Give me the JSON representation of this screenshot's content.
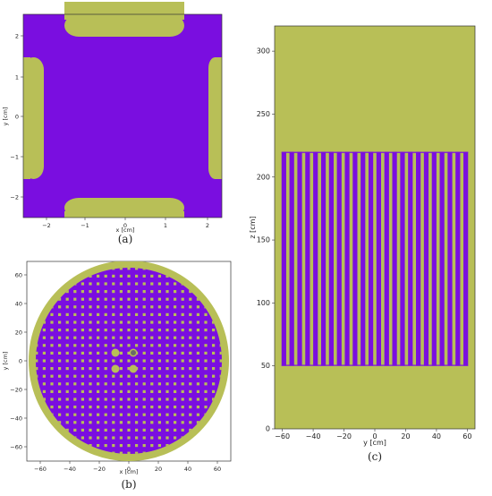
{
  "colors": {
    "fuel": "#7a0ee0",
    "moderator": "#b8bf57"
  },
  "panels": {
    "a": {
      "caption": "(a)",
      "xlabel": "x [cm]",
      "ylabel": "y [cm]",
      "xticks": [
        "−2",
        "−1",
        "0",
        "1",
        "2"
      ],
      "yticks": [
        "2",
        "1",
        "0",
        "−1",
        "−2"
      ]
    },
    "b": {
      "caption": "(b)",
      "xlabel": "x [cm]",
      "ylabel": "y [cm]",
      "xticks": [
        "−60",
        "−40",
        "−20",
        "0",
        "20",
        "40",
        "60"
      ],
      "yticks": [
        "60",
        "40",
        "20",
        "0",
        "−20",
        "−40",
        "−60"
      ]
    },
    "c": {
      "caption": "(c)",
      "xlabel": "y [cm]",
      "ylabel": "z [cm]",
      "xticks": [
        "−60",
        "−40",
        "−20",
        "0",
        "20",
        "40",
        "60"
      ],
      "yticks": [
        "300",
        "250",
        "200",
        "150",
        "100",
        "50",
        "0"
      ]
    }
  }
}
